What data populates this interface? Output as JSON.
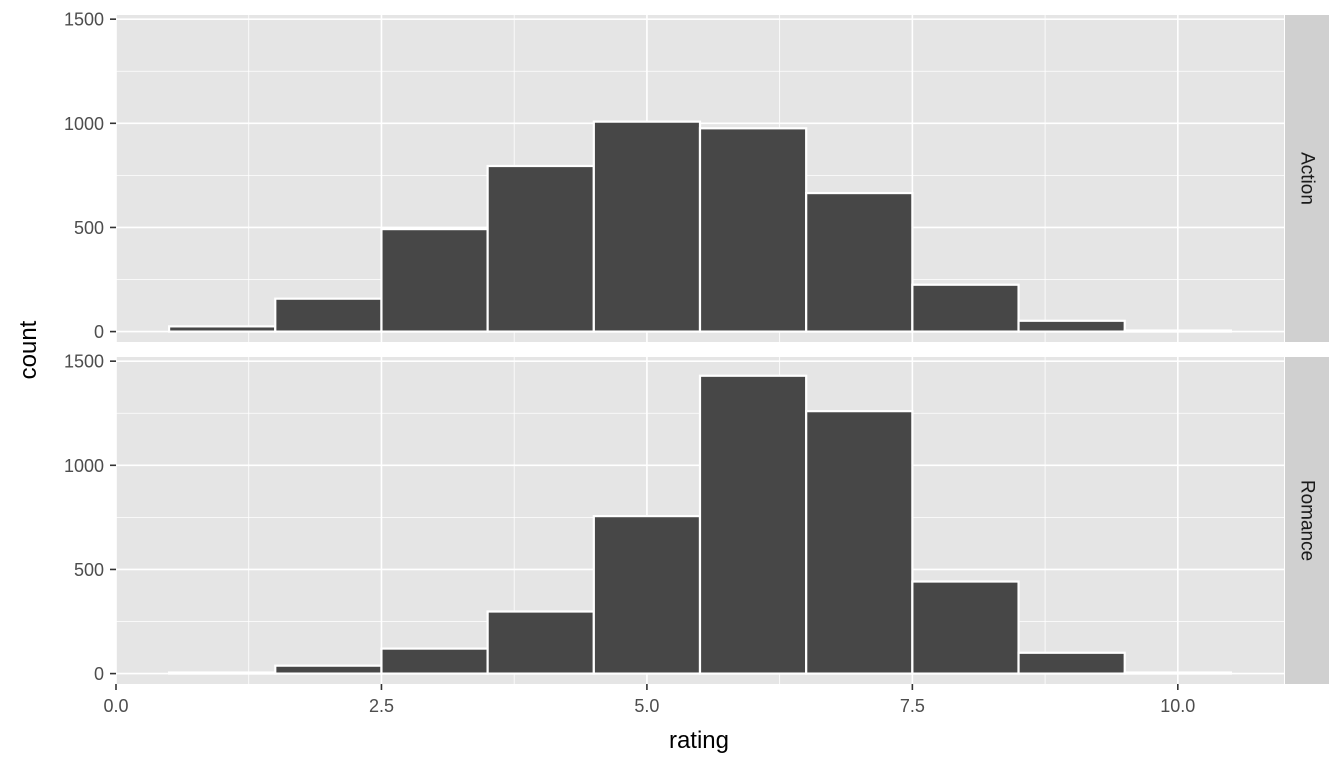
{
  "chart_data": {
    "type": "bar",
    "subtype": "histogram",
    "facet": "rows",
    "xlabel": "rating",
    "ylabel": "count",
    "xlim": [
      0,
      11
    ],
    "ylim": [
      -50,
      1520
    ],
    "x_ticks": [
      "0.0",
      "2.5",
      "5.0",
      "7.5",
      "10.0"
    ],
    "x_tick_values": [
      0,
      2.5,
      5,
      7.5,
      10
    ],
    "y_ticks": [
      "0",
      "500",
      "1000",
      "1500"
    ],
    "y_tick_values": [
      0,
      500,
      1000,
      1500
    ],
    "bin_width": 1,
    "bin_centers": [
      1,
      2,
      3,
      4,
      5,
      6,
      7,
      8,
      9,
      10
    ],
    "grid": true,
    "colors": {
      "panel_bg": "#e5e5e5",
      "grid": "#ffffff",
      "bar_fill": "#474747",
      "bar_outline": "#ffffff",
      "strip_bg": "#d0d0d0"
    },
    "facets": [
      {
        "name": "Action",
        "values": [
          25,
          158,
          492,
          795,
          1008,
          976,
          665,
          225,
          52,
          5
        ]
      },
      {
        "name": "Romance",
        "values": [
          5,
          38,
          120,
          298,
          756,
          1430,
          1260,
          442,
          100,
          5
        ]
      }
    ]
  }
}
